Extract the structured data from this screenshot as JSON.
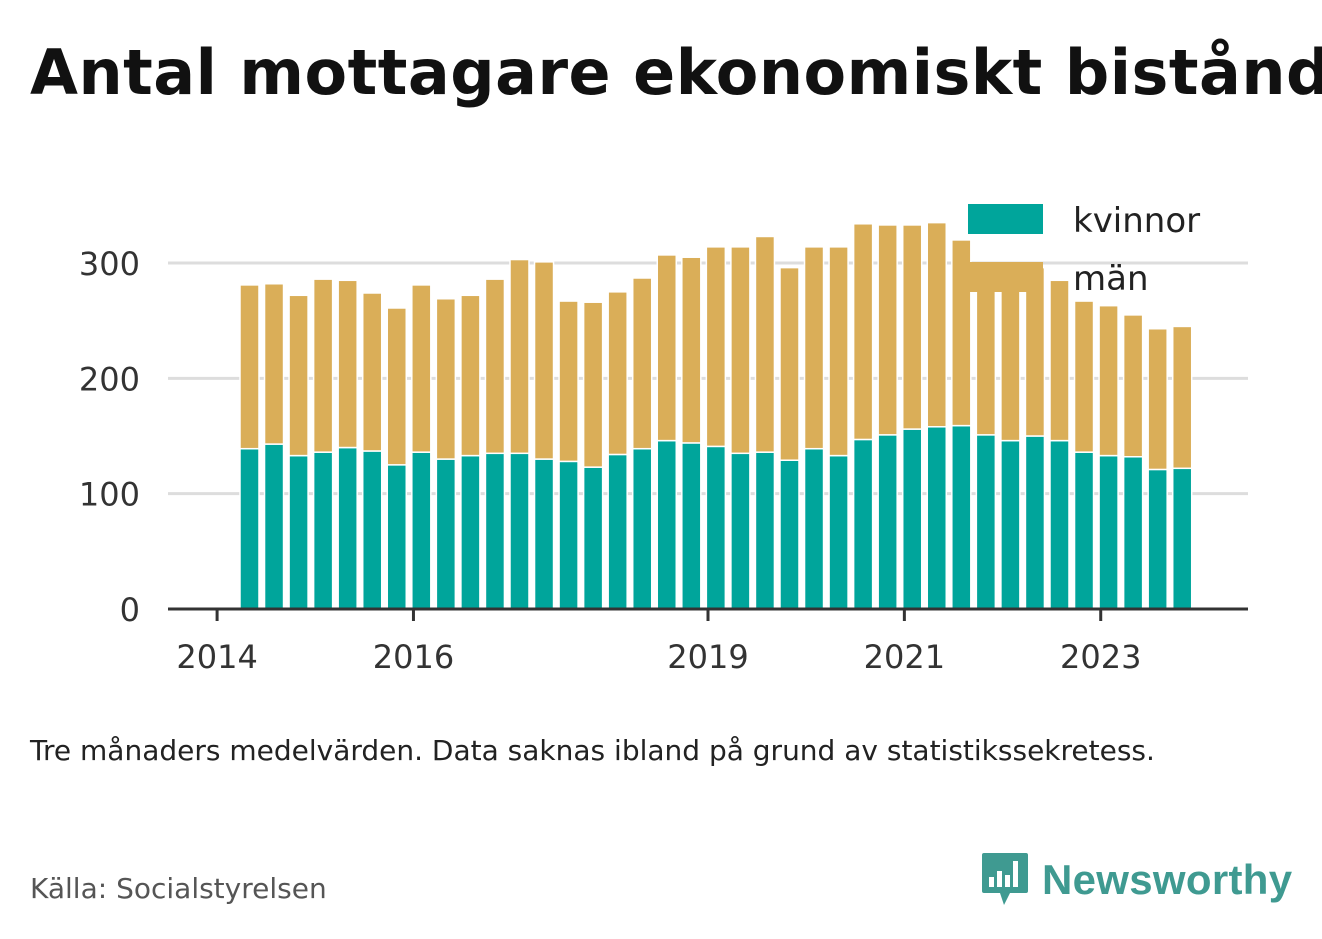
{
  "title": "Antal mottagare ekonomiskt bistånd",
  "note": "Tre månaders medelvärden. Data saknas ibland på grund av statistikssekretess.",
  "source": "Källa: Socialstyrelsen",
  "brand": {
    "name": "Newsworthy",
    "icon": "bar-chart-speech-bubble-icon",
    "color": "#3f9a91"
  },
  "colors": {
    "kvinnor": "#00a59b",
    "man": "#daae58",
    "grid": "#dddddd",
    "axis": "#333333"
  },
  "chart_data": {
    "type": "bar",
    "stacked": true,
    "title": "Antal mottagare ekonomiskt bistånd",
    "ylim": [
      0,
      340
    ],
    "yticks": [
      0,
      100,
      200,
      300
    ],
    "xtick_labels": [
      {
        "label": "2014",
        "value": 2014.0
      },
      {
        "label": "2016",
        "value": 2016.0
      },
      {
        "label": "2019",
        "value": 2019.0
      },
      {
        "label": "2021",
        "value": 2021.0
      },
      {
        "label": "2023",
        "value": 2023.0
      }
    ],
    "xlim": [
      2013.5,
      2024.5
    ],
    "legend_position": "top-right",
    "grid": true,
    "x_start": 2014.33,
    "x_step": 0.25,
    "series": [
      {
        "name": "kvinnor",
        "color": "#00a59b",
        "values": [
          139,
          143,
          133,
          136,
          140,
          137,
          125,
          136,
          130,
          133,
          135,
          135,
          130,
          128,
          123,
          134,
          139,
          146,
          144,
          141,
          135,
          136,
          129,
          139,
          133,
          147,
          151,
          156,
          158,
          159,
          151,
          146,
          150,
          146,
          136,
          133,
          132,
          121,
          122
        ]
      },
      {
        "name": "män",
        "color": "#daae58",
        "values": [
          142,
          139,
          139,
          150,
          145,
          137,
          136,
          145,
          139,
          139,
          151,
          168,
          171,
          139,
          143,
          141,
          148,
          161,
          161,
          173,
          179,
          187,
          167,
          175,
          181,
          187,
          182,
          177,
          177,
          161,
          142,
          147,
          146,
          139,
          131,
          130,
          123,
          122,
          123
        ]
      }
    ]
  }
}
